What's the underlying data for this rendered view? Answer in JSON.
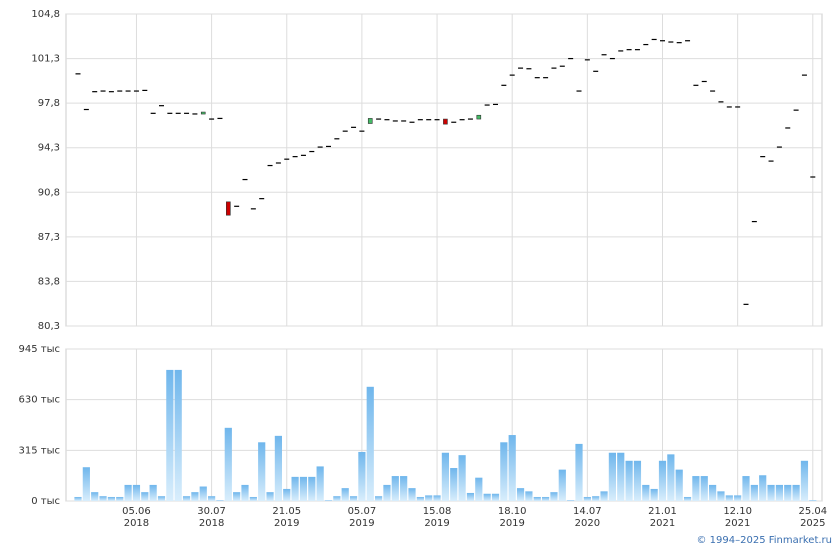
{
  "chart_data": [
    {
      "type": "candlestick",
      "categories": [
        null,
        null,
        null,
        null,
        null,
        null,
        null,
        "05.06\n2018",
        null,
        null,
        null,
        null,
        null,
        null,
        null,
        null,
        "30.07\n2018",
        null,
        null,
        null,
        null,
        null,
        null,
        null,
        null,
        "21.05\n2019",
        null,
        null,
        null,
        null,
        null,
        null,
        null,
        null,
        "05.07\n2019",
        null,
        null,
        null,
        null,
        null,
        null,
        null,
        null,
        "15.08\n2019",
        null,
        null,
        null,
        null,
        null,
        null,
        null,
        null,
        "18.10\n2019",
        null,
        null,
        null,
        null,
        null,
        null,
        null,
        null,
        "14.07\n2020",
        null,
        null,
        null,
        null,
        null,
        null,
        null,
        null,
        "21.01\n2021",
        null,
        null,
        null,
        null,
        null,
        null,
        null,
        null,
        "12.10\n2021",
        null,
        null,
        null,
        null,
        null,
        null,
        null,
        null,
        "25.04\n2025"
      ],
      "open": [
        100.1,
        97.3,
        98.7,
        98.75,
        98.7,
        98.75,
        98.75,
        98.75,
        98.8,
        97.0,
        97.6,
        97.0,
        97.0,
        97.0,
        96.95,
        96.95,
        96.55,
        96.6,
        90.05,
        89.7,
        91.8,
        89.5,
        90.3,
        92.9,
        93.1,
        93.4,
        93.6,
        93.7,
        94.0,
        94.35,
        94.4,
        95.0,
        95.6,
        95.9,
        95.6,
        96.2,
        96.55,
        96.5,
        96.4,
        96.4,
        96.3,
        96.5,
        96.5,
        96.5,
        96.55,
        96.3,
        96.5,
        96.55,
        96.55,
        97.65,
        97.7,
        99.2,
        100.0,
        100.55,
        100.5,
        99.8,
        99.8,
        100.55,
        100.7,
        101.3,
        98.75,
        101.2,
        100.3,
        101.6,
        101.3,
        101.9,
        102.0,
        102.0,
        102.4,
        102.8,
        102.7,
        102.6,
        102.55,
        102.7,
        99.2,
        99.5,
        98.75,
        97.9,
        97.5,
        97.5,
        82.0,
        88.5,
        93.6,
        93.25,
        94.35,
        95.85,
        97.25,
        100.0,
        92.0
      ],
      "close": [
        100.1,
        97.3,
        98.7,
        98.75,
        98.7,
        98.75,
        98.75,
        98.75,
        98.8,
        97.0,
        97.6,
        97.0,
        97.0,
        97.0,
        96.95,
        97.1,
        96.55,
        96.6,
        89.0,
        89.7,
        91.8,
        89.5,
        90.3,
        92.9,
        93.1,
        93.4,
        93.6,
        93.7,
        94.0,
        94.35,
        94.4,
        95.0,
        95.6,
        95.9,
        95.6,
        96.6,
        96.55,
        96.5,
        96.4,
        96.4,
        96.3,
        96.5,
        96.5,
        96.5,
        96.15,
        96.3,
        96.5,
        96.55,
        96.85,
        97.65,
        97.7,
        99.2,
        100.0,
        100.55,
        100.5,
        99.8,
        99.8,
        100.55,
        100.7,
        101.3,
        98.75,
        101.2,
        100.3,
        101.6,
        101.3,
        101.9,
        102.0,
        102.0,
        102.4,
        102.8,
        102.7,
        102.6,
        102.55,
        102.7,
        99.2,
        99.5,
        98.75,
        97.9,
        97.5,
        97.5,
        82.0,
        88.5,
        93.6,
        93.25,
        94.35,
        95.85,
        97.25,
        100.0,
        92.0
      ],
      "up_color": "#44bb66",
      "down_color": "#cc0000",
      "ylim": [
        80.3,
        104.8
      ],
      "yticks": [
        {
          "value": 80.3,
          "label": "80,3"
        },
        {
          "value": 83.8,
          "label": "83,8"
        },
        {
          "value": 87.3,
          "label": "87,3"
        },
        {
          "value": 90.8,
          "label": "90,8"
        },
        {
          "value": 94.3,
          "label": "94,3"
        },
        {
          "value": 97.8,
          "label": "97,8"
        },
        {
          "value": 101.3,
          "label": "101,3"
        },
        {
          "value": 104.8,
          "label": "104,8"
        }
      ],
      "grid": true
    },
    {
      "type": "bar",
      "values": [
        25,
        210,
        55,
        30,
        25,
        25,
        100,
        100,
        55,
        100,
        30,
        815,
        815,
        30,
        55,
        90,
        30,
        5,
        455,
        55,
        100,
        25,
        365,
        55,
        405,
        75,
        150,
        150,
        150,
        215,
        5,
        30,
        80,
        30,
        305,
        710,
        30,
        100,
        155,
        155,
        80,
        25,
        35,
        35,
        300,
        205,
        285,
        50,
        145,
        45,
        45,
        365,
        410,
        80,
        60,
        25,
        25,
        55,
        195,
        5,
        355,
        25,
        30,
        60,
        300,
        300,
        250,
        250,
        100,
        75,
        250,
        290,
        195,
        25,
        155,
        155,
        100,
        60,
        35,
        35,
        155,
        100,
        160,
        100,
        100,
        100,
        100,
        250,
        5
      ],
      "color": "#86c4f0",
      "ylim": [
        0,
        945
      ],
      "yticks": [
        {
          "value": 0,
          "label": "0 тыс"
        },
        {
          "value": 315,
          "label": "315 тыс"
        },
        {
          "value": 630,
          "label": "630 тыс"
        },
        {
          "value": 945,
          "label": "945 тыс"
        }
      ],
      "grid": true
    }
  ],
  "footer": "© 1994–2025 Finmarket.ru"
}
